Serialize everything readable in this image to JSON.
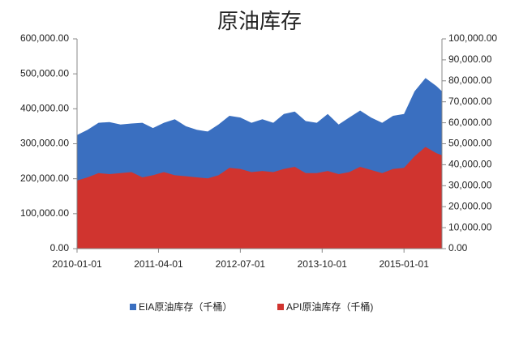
{
  "chart_data": {
    "type": "area",
    "title": "原油库存",
    "x": [
      "2010-01-01",
      "2010-03-01",
      "2010-05-01",
      "2010-07-01",
      "2010-09-01",
      "2010-11-01",
      "2011-01-01",
      "2011-03-01",
      "2011-05-01",
      "2011-07-01",
      "2011-09-01",
      "2011-11-01",
      "2012-01-01",
      "2012-03-01",
      "2012-05-01",
      "2012-07-01",
      "2012-09-01",
      "2012-11-01",
      "2013-01-01",
      "2013-03-01",
      "2013-05-01",
      "2013-07-01",
      "2013-09-01",
      "2013-11-01",
      "2014-01-01",
      "2014-03-01",
      "2014-05-01",
      "2014-07-01",
      "2014-09-01",
      "2014-11-01",
      "2015-01-01",
      "2015-03-01",
      "2015-05-01",
      "2015-07-01",
      "2015-08-01"
    ],
    "xlim": [
      "2010-01-01",
      "2015-08-01"
    ],
    "xticks": [
      "2010-01-01",
      "2011-04-01",
      "2012-07-01",
      "2013-10-01",
      "2015-01-01"
    ],
    "series": [
      {
        "name": "EIA原油库存（千桶）",
        "color": "#3a6fc0",
        "values": [
          325000,
          340000,
          360000,
          362000,
          355000,
          358000,
          360000,
          345000,
          360000,
          370000,
          350000,
          340000,
          335000,
          355000,
          380000,
          375000,
          360000,
          370000,
          360000,
          385000,
          392000,
          365000,
          360000,
          385000,
          355000,
          375000,
          395000,
          375000,
          360000,
          380000,
          385000,
          450000,
          488000,
          465000,
          450000
        ]
      },
      {
        "name": "API原油库存（千桶)",
        "color": "#d0342f",
        "axis": "y2",
        "values": [
          32500,
          34000,
          36000,
          35500,
          36000,
          36500,
          34000,
          35000,
          36500,
          35000,
          34500,
          34000,
          33500,
          35000,
          38500,
          38000,
          36500,
          37000,
          36500,
          38000,
          39000,
          36000,
          36000,
          37000,
          35500,
          36500,
          39000,
          37500,
          36000,
          38000,
          38500,
          44000,
          48500,
          45500,
          44500
        ]
      }
    ],
    "ylim": [
      0,
      600000
    ],
    "yticks": [
      {
        "value": 0,
        "label": "0.00"
      },
      {
        "value": 100000,
        "label": "100,000.00"
      },
      {
        "value": 200000,
        "label": "200,000.00"
      },
      {
        "value": 300000,
        "label": "300,000.00"
      },
      {
        "value": 400000,
        "label": "400,000.00"
      },
      {
        "value": 500000,
        "label": "500,000.00"
      },
      {
        "value": 600000,
        "label": "600,000.00"
      }
    ],
    "y2lim": [
      0,
      100000
    ],
    "y2ticks": [
      {
        "value": 0,
        "label": "0.00"
      },
      {
        "value": 10000,
        "label": "10,000.00"
      },
      {
        "value": 20000,
        "label": "20,000.00"
      },
      {
        "value": 30000,
        "label": "30,000.00"
      },
      {
        "value": 40000,
        "label": "40,000.00"
      },
      {
        "value": 50000,
        "label": "50,000.00"
      },
      {
        "value": 60000,
        "label": "60,000.00"
      },
      {
        "value": 70000,
        "label": "70,000.00"
      },
      {
        "value": 80000,
        "label": "80,000.00"
      },
      {
        "value": 90000,
        "label": "90,000.00"
      },
      {
        "value": 100000,
        "label": "100,000.00"
      }
    ]
  }
}
